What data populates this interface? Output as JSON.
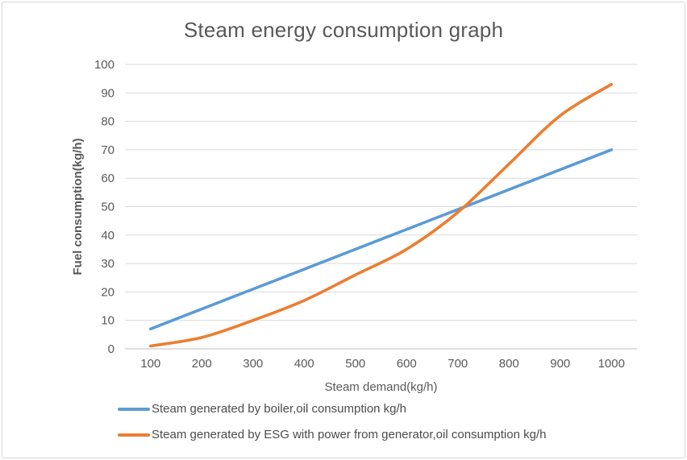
{
  "chart_data": {
    "type": "line",
    "title": "Steam energy consumption graph",
    "xlabel": "Steam demand(kg/h)",
    "ylabel": "Fuel consumption(kg/h)",
    "categories": [
      100,
      200,
      300,
      400,
      500,
      600,
      700,
      800,
      900,
      1000
    ],
    "series": [
      {
        "name": "Steam generated by boiler,oil consumption kg/h",
        "color": "#5B9BD5",
        "values": [
          7,
          14,
          21,
          28,
          35,
          42,
          49,
          56,
          63,
          70
        ]
      },
      {
        "name": "Steam generated by ESG with power from generator,oil consumption kg/h",
        "color": "#ED7D31",
        "values": [
          1,
          4,
          10,
          17,
          26,
          35,
          48,
          65,
          82,
          93
        ]
      }
    ],
    "ylim": [
      0,
      100
    ],
    "ytick_step": 10,
    "grid": true,
    "smooth": true,
    "legend_position": "bottom-left",
    "colors": {
      "gridline": "#D9D9D9",
      "axis_line": "#BFBFBF",
      "text": "#595959",
      "legend_text": "#4C4C4C",
      "frame_border": "#D6D6D6",
      "background": "#FFFFFF"
    }
  }
}
